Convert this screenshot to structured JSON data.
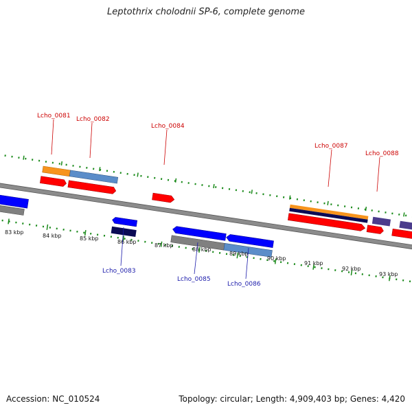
{
  "title": "Leptothrix cholodnii SP-6, complete genome",
  "footer": {
    "accession": "Accession: NC_010524",
    "topology": "Topology: circular; Length: 4,909,403 bp; Genes: 4,420"
  },
  "colors": {
    "forward_gene": "#ff0000",
    "reverse_gene": "#0000ff",
    "reverse_gene_dark": "#000066",
    "forward_track_cds": "#f7941d",
    "forward_track_gene": "#5b8dc9",
    "reverse_track_cds": "#808080",
    "reverse_track_gene": "#5b8dc9",
    "purple_gene": "#4b3c8c",
    "ruler": "#1a8a1a",
    "backbone": "#888888"
  },
  "tick_labels": [
    "83 kbp",
    "84 kbp",
    "85 kbp",
    "86 kbp",
    "87 kbp",
    "88 kbp",
    "89 kbp",
    "90 kbp",
    "91 kbp",
    "92 kbp",
    "93 kbp"
  ],
  "top_loci": [
    "Lcho_0081",
    "Lcho_0082",
    "Lcho_0084",
    "Lcho_0087",
    "Lcho_0088"
  ],
  "bottom_loci": [
    "Lcho_0083",
    "Lcho_0085",
    "Lcho_0086"
  ]
}
